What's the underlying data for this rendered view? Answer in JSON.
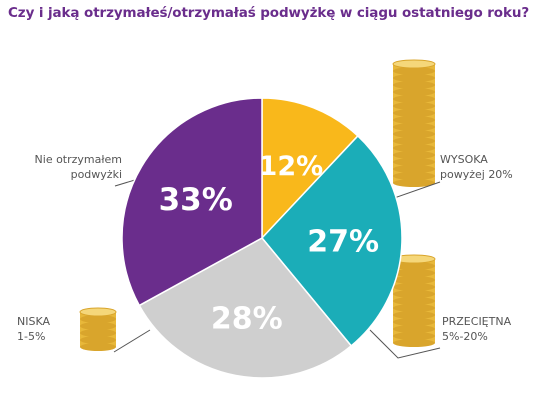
{
  "chart_data": {
    "type": "pie",
    "title": "Czy i jaką otrzymałeś/otrzymałaś podwyżkę w ciągu ostatniego roku?",
    "slices": [
      {
        "key": "wysoka",
        "value": 12,
        "display": "12%",
        "label_lines": [
          "WYSOKA",
          "powyżej 20%"
        ],
        "color": "#f9b81b"
      },
      {
        "key": "przecietna",
        "value": 27,
        "display": "27%",
        "label_lines": [
          "PRZECIĘTNA",
          "5%-20%"
        ],
        "color": "#1badb8"
      },
      {
        "key": "niska",
        "value": 28,
        "display": "28%",
        "label_lines": [
          "NISKA",
          "1-5%"
        ],
        "color": "#cfcfcf"
      },
      {
        "key": "brak",
        "value": 33,
        "display": "33%",
        "label_lines": [
          "Nie otrzymałem",
          "podwyżki"
        ],
        "color": "#6a2d8c"
      }
    ],
    "colors": {
      "title": "#6a2d8c",
      "leader": "#555555",
      "coin": "#e8b83a"
    }
  }
}
